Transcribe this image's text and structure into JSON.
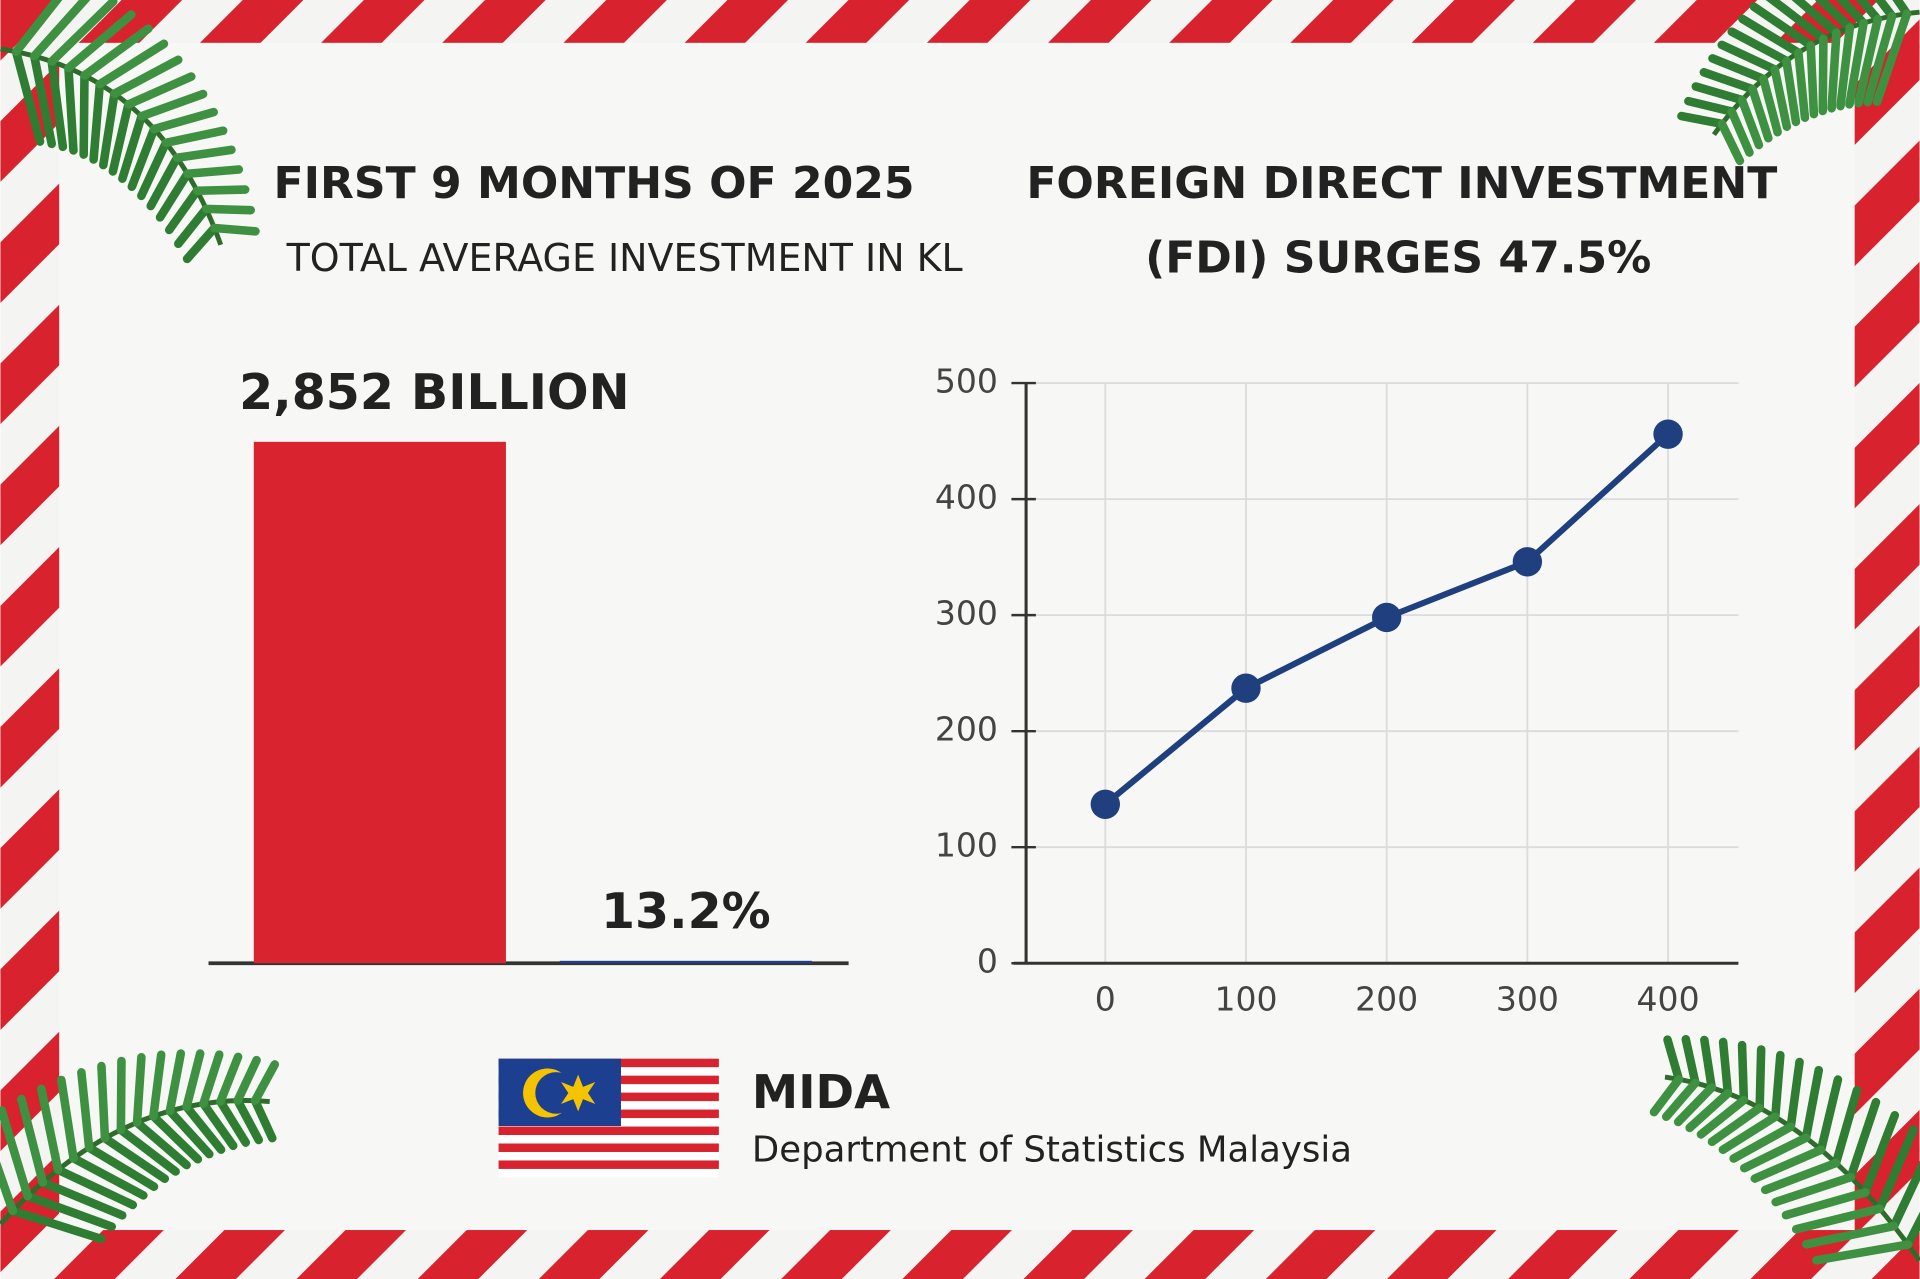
{
  "chart_data": [
    {
      "type": "bar",
      "title": "FIRST 9 MONTHS OF 2025",
      "subtitle": "TOTAL AVERAGE INVESTMENT IN KL",
      "values": [
        2852,
        13.2
      ],
      "value_labels": [
        "2,852 BILLION",
        "13.2%"
      ],
      "colors": [
        "#d9232e",
        "#1d3f8f"
      ]
    },
    {
      "type": "line",
      "title": [
        "FOREIGN DIRECT INVESTMENT",
        "(FDI) SURGES 47.5%"
      ],
      "x": [
        0,
        100,
        200,
        300,
        400
      ],
      "values": [
        137,
        237,
        298,
        346,
        456
      ],
      "color": "#1f3f7f",
      "xlim": [
        -65,
        450
      ],
      "xticks": [
        0,
        100,
        200,
        300,
        400
      ],
      "ylim": [
        0,
        500
      ],
      "yticks": [
        0,
        100,
        200,
        300,
        400,
        500
      ],
      "grid": true
    }
  ],
  "footer": {
    "org": "MIDA",
    "source": "Department of Statistics Malaysia"
  }
}
